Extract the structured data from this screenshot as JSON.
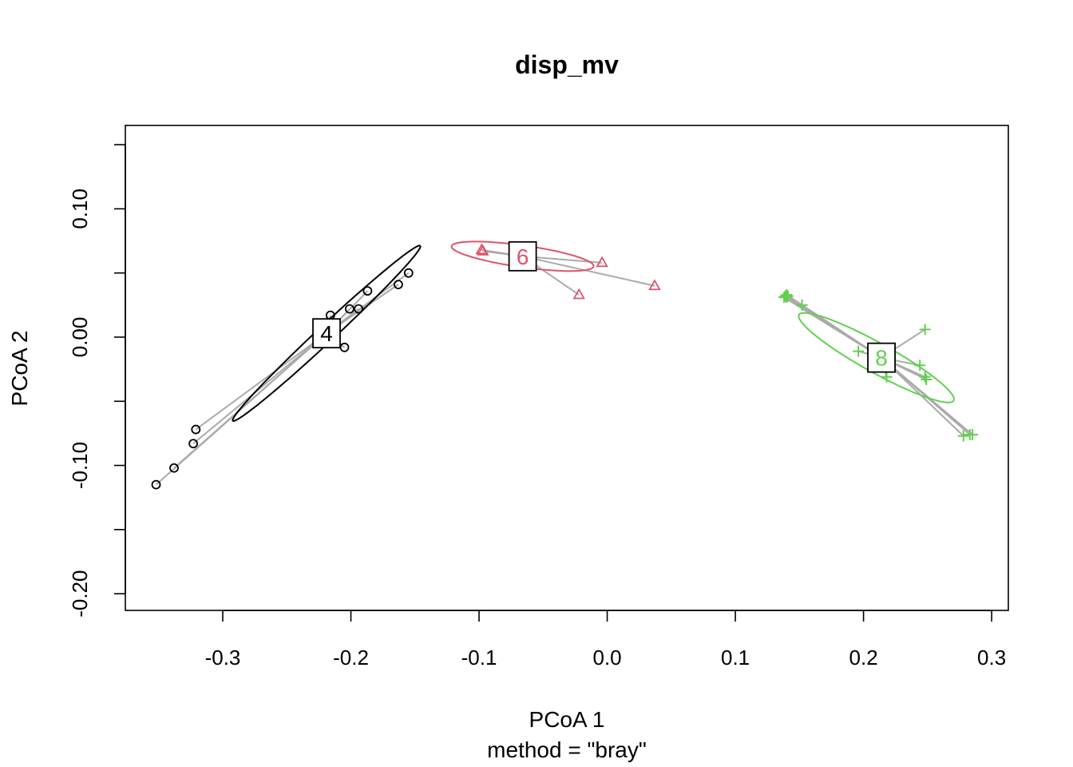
{
  "chart_data": {
    "type": "scatter",
    "title": "disp_mv",
    "xlabel": "PCoA 1",
    "ylabel": "PCoA 2",
    "sub": "method = \"bray\"",
    "xlim": [
      -0.376,
      0.313
    ],
    "ylim": [
      -0.213,
      0.165
    ],
    "x_ticks": [
      -0.3,
      -0.2,
      -0.1,
      0.0,
      0.1,
      0.2,
      0.3
    ],
    "x_tick_labels": [
      "-0.3",
      "-0.2",
      "-0.1",
      "0.0",
      "0.1",
      "0.2",
      "0.3"
    ],
    "y_ticks": [
      -0.2,
      -0.15,
      -0.1,
      -0.05,
      0.0,
      0.05,
      0.1,
      0.15
    ],
    "y_tick_labels": [
      "-0.20",
      "",
      "-0.10",
      "",
      "0.00",
      "",
      "0.10",
      ""
    ],
    "connector_color": "#aaaaaa",
    "groups": [
      {
        "label": "4",
        "color": "#000000",
        "marker": "circle",
        "centroid": [
          -0.219,
          0.003
        ],
        "ellipse": {
          "center": [
            -0.219,
            0.003
          ],
          "semi_major": 0.1,
          "semi_minor": 0.0065,
          "angle_deg": 43
        },
        "points": [
          [
            -0.352,
            -0.115
          ],
          [
            -0.338,
            -0.102
          ],
          [
            -0.323,
            -0.083
          ],
          [
            -0.321,
            -0.072
          ],
          [
            -0.216,
            0.017
          ],
          [
            -0.205,
            -0.008
          ],
          [
            -0.201,
            0.022
          ],
          [
            -0.194,
            0.022
          ],
          [
            -0.187,
            0.036
          ],
          [
            -0.163,
            0.041
          ],
          [
            -0.155,
            0.05
          ]
        ]
      },
      {
        "label": "6",
        "color": "#df536b",
        "marker": "triangle",
        "centroid": [
          -0.066,
          0.063
        ],
        "ellipse": {
          "center": [
            -0.066,
            0.063
          ],
          "semi_major": 0.056,
          "semi_minor": 0.0085,
          "angle_deg": -8
        },
        "points": [
          [
            -0.098,
            0.068
          ],
          [
            -0.097,
            0.067
          ],
          [
            -0.022,
            0.033
          ],
          [
            -0.004,
            0.058
          ],
          [
            0.037,
            0.04
          ]
        ]
      },
      {
        "label": "8",
        "color": "#61d04f",
        "marker": "plus",
        "centroid": [
          0.214,
          -0.016
        ],
        "ellipse": {
          "center": [
            0.21,
            -0.016
          ],
          "semi_major": 0.069,
          "semi_minor": 0.0115,
          "angle_deg": -29
        },
        "points": [
          [
            0.138,
            0.031
          ],
          [
            0.139,
            0.032
          ],
          [
            0.14,
            0.033
          ],
          [
            0.14,
            0.031
          ],
          [
            0.141,
            0.032
          ],
          [
            0.152,
            0.025
          ],
          [
            0.196,
            -0.011
          ],
          [
            0.218,
            -0.031
          ],
          [
            0.244,
            -0.022
          ],
          [
            0.248,
            0.006
          ],
          [
            0.248,
            -0.031
          ],
          [
            0.249,
            -0.033
          ],
          [
            0.278,
            -0.077
          ],
          [
            0.283,
            -0.076
          ],
          [
            0.285,
            -0.076
          ]
        ]
      }
    ]
  }
}
